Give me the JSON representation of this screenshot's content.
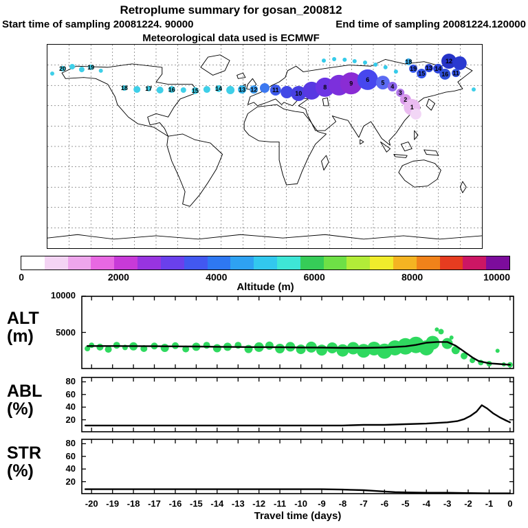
{
  "header": {
    "title": "Retroplume summary for gosan_200812",
    "sampling_start": "Start time of sampling 20081224. 90000",
    "sampling_end": "End time of sampling 20081224.120000",
    "met_source": "Meteorological data used is ECMWF"
  },
  "colorbar": {
    "label": "Altitude (m)",
    "ticks": [
      "0",
      "2000",
      "4000",
      "6000",
      "8000",
      "10000"
    ],
    "range": [
      0,
      10000
    ],
    "colors": [
      "#ffffff",
      "#f4d4f4",
      "#eea6ec",
      "#e868e2",
      "#c83ad8",
      "#9834e0",
      "#6a40ec",
      "#4258f0",
      "#2e78f2",
      "#2ea2f2",
      "#32c8ee",
      "#3ee6d6",
      "#36cc58",
      "#6ee046",
      "#b2ec38",
      "#f0ec2c",
      "#f4b422",
      "#f0821a",
      "#e63c20",
      "#cc1664",
      "#7c0c9c"
    ]
  },
  "time_axis": {
    "label": "Travel time (days)",
    "min": -20.5,
    "max": 0.2,
    "ticks": [
      -20,
      -19,
      -18,
      -17,
      -16,
      -15,
      -14,
      -13,
      -12,
      -11,
      -10,
      -9,
      -8,
      -7,
      -6,
      -5,
      -4,
      -3,
      -2,
      -1,
      0
    ]
  },
  "chart_data": [
    {
      "type": "scatter",
      "name": "trajectory-map",
      "projection": "equirectangular",
      "lon_range": [
        -180,
        180
      ],
      "lat_range": [
        -90,
        90
      ],
      "note": "cluster markers labeled by travel-time day, colored by altitude per colorbar; x,y are percent of map box",
      "points": [
        {
          "l": "",
          "x": 1.1,
          "y": 14.2,
          "r": 3,
          "c": "#3fcfe8"
        },
        {
          "l": "20",
          "x": 3.5,
          "y": 11.8,
          "r": 4,
          "c": "#3fcfe8"
        },
        {
          "l": "",
          "x": 5.7,
          "y": 10.8,
          "r": 4,
          "c": "#3fcfe8"
        },
        {
          "l": "",
          "x": 7.9,
          "y": 12.2,
          "r": 4,
          "c": "#3fcfe8"
        },
        {
          "l": "19",
          "x": 10.0,
          "y": 11.1,
          "r": 4,
          "c": "#3fcfe8"
        },
        {
          "l": "",
          "x": 12.3,
          "y": 12.8,
          "r": 3,
          "c": "#3fcfe8"
        },
        {
          "l": "18",
          "x": 17.7,
          "y": 21.3,
          "r": 4,
          "c": "#3fcfe8"
        },
        {
          "l": "",
          "x": 20.6,
          "y": 22.0,
          "r": 5,
          "c": "#3fcfe8"
        },
        {
          "l": "17",
          "x": 23.3,
          "y": 21.6,
          "r": 4,
          "c": "#3fcfe8"
        },
        {
          "l": "",
          "x": 25.9,
          "y": 22.3,
          "r": 5,
          "c": "#3fcfe8"
        },
        {
          "l": "16",
          "x": 28.6,
          "y": 22.0,
          "r": 5,
          "c": "#3fcfe8"
        },
        {
          "l": "",
          "x": 31.3,
          "y": 22.3,
          "r": 4,
          "c": "#3fcfe8"
        },
        {
          "l": "15",
          "x": 34.0,
          "y": 22.6,
          "r": 5,
          "c": "#3fcfe8"
        },
        {
          "l": "",
          "x": 36.7,
          "y": 22.0,
          "r": 5,
          "c": "#3fcfe8"
        },
        {
          "l": "14",
          "x": 39.4,
          "y": 21.6,
          "r": 5,
          "c": "#3fcfe8"
        },
        {
          "l": "",
          "x": 42.1,
          "y": 22.3,
          "r": 6,
          "c": "#3fcfe8"
        },
        {
          "l": "13",
          "x": 44.8,
          "y": 22.0,
          "r": 6,
          "c": "#36b8ee"
        },
        {
          "l": "12",
          "x": 47.5,
          "y": 22.0,
          "r": 6,
          "c": "#3a9af0"
        },
        {
          "l": "",
          "x": 50.0,
          "y": 21.3,
          "r": 7,
          "c": "#3c78f0"
        },
        {
          "l": "11",
          "x": 52.5,
          "y": 22.3,
          "r": 8,
          "c": "#3e5cec"
        },
        {
          "l": "",
          "x": 55.1,
          "y": 23.3,
          "r": 9,
          "c": "#4148e6"
        },
        {
          "l": "10",
          "x": 57.8,
          "y": 24.0,
          "r": 11,
          "c": "#4740e2"
        },
        {
          "l": "",
          "x": 60.8,
          "y": 22.6,
          "r": 13,
          "c": "#5838e2"
        },
        {
          "l": "8",
          "x": 63.9,
          "y": 20.9,
          "r": 14,
          "c": "#6c34e4"
        },
        {
          "l": "",
          "x": 67.1,
          "y": 19.9,
          "r": 15,
          "c": "#7c30dc"
        },
        {
          "l": "9",
          "x": 69.9,
          "y": 19.0,
          "r": 16,
          "c": "#8a2cd4"
        },
        {
          "l": "6",
          "x": 73.7,
          "y": 17.2,
          "r": 15,
          "c": "#4747ee"
        },
        {
          "l": "5",
          "x": 77.2,
          "y": 18.6,
          "r": 10,
          "c": "#5b6af2"
        },
        {
          "l": "4",
          "x": 79.4,
          "y": 20.6,
          "r": 7,
          "c": "#8a64ea"
        },
        {
          "l": "3",
          "x": 81.2,
          "y": 23.6,
          "r": 6,
          "c": "#b277e8"
        },
        {
          "l": "2",
          "x": 82.4,
          "y": 27.0,
          "r": 8,
          "c": "#d898ea"
        },
        {
          "l": "1",
          "x": 83.9,
          "y": 30.7,
          "r": 12,
          "c": "#eabcf0"
        },
        {
          "l": "",
          "x": 84.8,
          "y": 34.1,
          "r": 8,
          "c": "#f2d6f6"
        },
        {
          "l": "18",
          "x": 83.1,
          "y": 8.4,
          "r": 5,
          "c": "#38b0f0"
        },
        {
          "l": "19",
          "x": 84.2,
          "y": 11.8,
          "r": 6,
          "c": "#3354ea"
        },
        {
          "l": "15",
          "x": 86.1,
          "y": 14.2,
          "r": 7,
          "c": "#3354ea"
        },
        {
          "l": "13",
          "x": 87.8,
          "y": 11.5,
          "r": 6,
          "c": "#2c44da"
        },
        {
          "l": "14",
          "x": 89.9,
          "y": 11.8,
          "r": 7,
          "c": "#2c44da"
        },
        {
          "l": "12",
          "x": 92.4,
          "y": 8.1,
          "r": 11,
          "c": "#2634c8"
        },
        {
          "l": "",
          "x": 94.9,
          "y": 9.1,
          "r": 10,
          "c": "#2a3ad0"
        },
        {
          "l": "16",
          "x": 91.5,
          "y": 14.5,
          "r": 8,
          "c": "#3050da"
        },
        {
          "l": "11",
          "x": 94.0,
          "y": 13.9,
          "r": 6,
          "c": "#3050da"
        },
        {
          "l": "",
          "x": 98.1,
          "y": 22.0,
          "r": 3,
          "c": "#3fcfe8"
        },
        {
          "l": "",
          "x": 63.6,
          "y": 7.8,
          "r": 3,
          "c": "#35cbea"
        },
        {
          "l": "",
          "x": 66.0,
          "y": 7.1,
          "r": 3,
          "c": "#35cbea"
        },
        {
          "l": "",
          "x": 68.4,
          "y": 7.4,
          "r": 3,
          "c": "#35cbea"
        },
        {
          "l": "",
          "x": 70.7,
          "y": 8.1,
          "r": 3,
          "c": "#35cbea"
        },
        {
          "l": "",
          "x": 73.1,
          "y": 8.8,
          "r": 3,
          "c": "#35cbea"
        },
        {
          "l": "",
          "x": 75.5,
          "y": 9.8,
          "r": 3,
          "c": "#35cbea"
        },
        {
          "l": "",
          "x": 77.8,
          "y": 11.1,
          "r": 3,
          "c": "#35cbea"
        },
        {
          "l": "",
          "x": 80.2,
          "y": 13.2,
          "r": 3,
          "c": "#35cbea"
        }
      ]
    },
    {
      "type": "scatter",
      "name": "alt-panel",
      "label": "ALT",
      "unit": "(m)",
      "ylim": [
        0,
        10000
      ],
      "yticks": [
        5000,
        10000
      ],
      "scatter_color": "#2fd95f",
      "line_color": "#000000",
      "line": {
        "x": [
          -20.2,
          -19,
          -18,
          -17,
          -16,
          -15,
          -14,
          -13,
          -12,
          -11,
          -10,
          -9,
          -8,
          -7,
          -6,
          -5,
          -4.5,
          -4,
          -3.5,
          -3,
          -2.6,
          -2.2,
          -1.8,
          -1.5,
          -1,
          -0.5,
          0
        ],
        "y": [
          3150,
          3150,
          3140,
          3120,
          3100,
          3080,
          3050,
          3020,
          3000,
          2980,
          2950,
          2930,
          2900,
          2900,
          2950,
          3100,
          3300,
          3600,
          3700,
          3700,
          3200,
          2400,
          1600,
          1100,
          800,
          700,
          600
        ]
      },
      "scatter": [
        [
          -20.2,
          2800,
          4
        ],
        [
          -20,
          3250,
          4
        ],
        [
          -19.6,
          3000,
          5
        ],
        [
          -19.2,
          2700,
          5
        ],
        [
          -18.8,
          3250,
          5
        ],
        [
          -18.4,
          2950,
          4
        ],
        [
          -18,
          3100,
          6
        ],
        [
          -17.5,
          2800,
          5
        ],
        [
          -17,
          3150,
          5
        ],
        [
          -16.5,
          2900,
          6
        ],
        [
          -16,
          3200,
          5
        ],
        [
          -15.5,
          2750,
          5
        ],
        [
          -15,
          3050,
          6
        ],
        [
          -14.5,
          3250,
          5
        ],
        [
          -14,
          2850,
          6
        ],
        [
          -13.5,
          3050,
          6
        ],
        [
          -13,
          3250,
          5
        ],
        [
          -12.5,
          2750,
          6
        ],
        [
          -12,
          3000,
          7
        ],
        [
          -11.5,
          3200,
          6
        ],
        [
          -11,
          2800,
          7
        ],
        [
          -10.5,
          3050,
          7
        ],
        [
          -10,
          2700,
          7
        ],
        [
          -9.5,
          3000,
          8
        ],
        [
          -9,
          2600,
          8
        ],
        [
          -8.5,
          2900,
          8
        ],
        [
          -8,
          2550,
          9
        ],
        [
          -7.5,
          2850,
          9
        ],
        [
          -7,
          2500,
          10
        ],
        [
          -6.5,
          2800,
          10
        ],
        [
          -6,
          2450,
          11
        ],
        [
          -5.5,
          2900,
          11
        ],
        [
          -5,
          3100,
          12
        ],
        [
          -4.5,
          3300,
          12
        ],
        [
          -4,
          2900,
          11
        ],
        [
          -3.7,
          3600,
          10
        ],
        [
          -3.5,
          5400,
          3
        ],
        [
          -3.3,
          5100,
          4
        ],
        [
          -3,
          3500,
          8
        ],
        [
          -2.8,
          4300,
          3
        ],
        [
          -2.6,
          2600,
          6
        ],
        [
          -2.2,
          1800,
          5
        ],
        [
          -1.8,
          1200,
          4
        ],
        [
          -1.4,
          900,
          4
        ],
        [
          -1,
          750,
          4
        ],
        [
          -0.6,
          2500,
          3
        ],
        [
          -0.3,
          650,
          3
        ],
        [
          0,
          600,
          4
        ]
      ]
    },
    {
      "type": "line",
      "name": "abl-panel",
      "label": "ABL",
      "unit": "(%)",
      "ylim": [
        0,
        88
      ],
      "yticks": [
        20,
        40,
        60,
        80
      ],
      "x": [
        -20.3,
        -18,
        -16,
        -14,
        -12,
        -10,
        -9,
        -8,
        -7,
        -6,
        -5,
        -4,
        -3.5,
        -3,
        -2.5,
        -2.2,
        -1.9,
        -1.6,
        -1.35,
        -1.1,
        -0.8,
        -0.5,
        -0.2,
        0
      ],
      "y": [
        11,
        11,
        11,
        11,
        11,
        11,
        11,
        11,
        12,
        12,
        13,
        14,
        15,
        16,
        18,
        21,
        26,
        33,
        43,
        38,
        30,
        24,
        19,
        16
      ]
    },
    {
      "type": "line",
      "name": "str-panel",
      "label": "STR",
      "unit": "(%)",
      "ylim": [
        0,
        88
      ],
      "yticks": [
        20,
        40,
        60,
        80
      ],
      "x": [
        -20.3,
        -18,
        -16,
        -14,
        -12,
        -10,
        -9,
        -8,
        -7.5,
        -7,
        -6.5,
        -6,
        -5.5,
        -5,
        -4,
        -3,
        -2,
        -1,
        0
      ],
      "y": [
        8,
        8,
        8,
        8,
        8,
        8,
        8,
        7.5,
        7,
        6.5,
        5.5,
        4.5,
        3.5,
        3,
        2.5,
        2.5,
        2,
        1.5,
        1.5
      ]
    }
  ]
}
